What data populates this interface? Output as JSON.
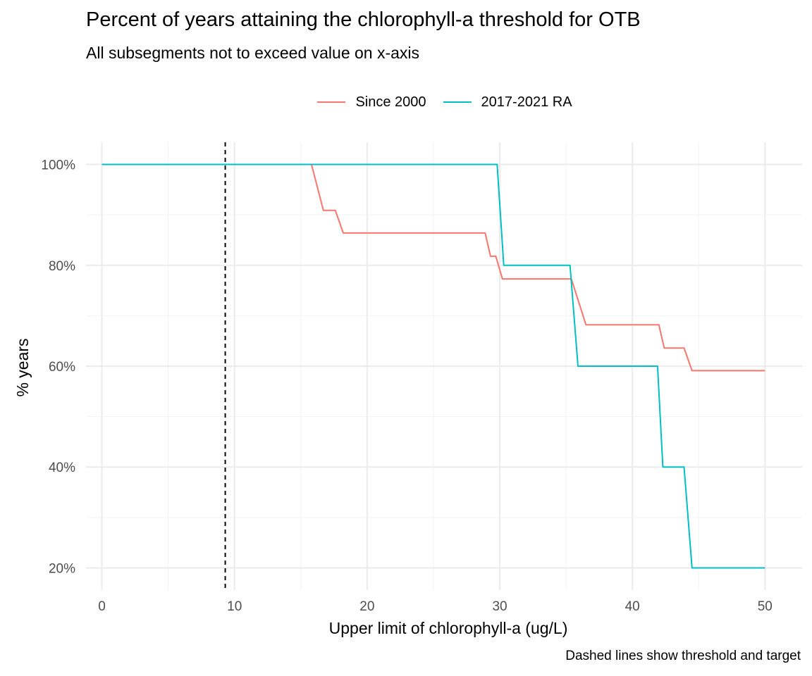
{
  "chart_data": {
    "type": "line",
    "title": "Percent of years attaining the chlorophyll-a threshold for OTB",
    "subtitle": "All subsegments not to exceed value on x-axis",
    "caption": "Dashed lines show threshold and target",
    "xlabel": "Upper limit of chlorophyll-a (ug/L)",
    "ylabel": "% years",
    "xlim": [
      -1.2,
      52.8
    ],
    "ylim": [
      15.6,
      104.4
    ],
    "xticks": [
      0,
      10,
      20,
      30,
      40,
      50
    ],
    "xtick_labels": [
      "0",
      "10",
      "20",
      "30",
      "40",
      "50"
    ],
    "yticks": [
      20,
      40,
      60,
      80,
      100
    ],
    "ytick_labels": [
      "20%",
      "40%",
      "60%",
      "80%",
      "100%"
    ],
    "grid": true,
    "legend_position": "top",
    "reference_lines": [
      {
        "axis": "x",
        "value": 9.3,
        "style": "dashed",
        "color": "#000000"
      }
    ],
    "series": [
      {
        "name": "Since 2000",
        "color": "#F8766D",
        "x": [
          0,
          15.8,
          16.7,
          17.6,
          18.2,
          28.9,
          29.3,
          29.7,
          30.2,
          35.4,
          36.5,
          42.0,
          42.4,
          43.9,
          44.5,
          50
        ],
        "y": [
          100,
          100,
          90.9,
          90.9,
          86.4,
          86.4,
          81.8,
          81.8,
          77.3,
          77.3,
          68.2,
          68.2,
          63.6,
          63.6,
          59.1,
          59.1
        ]
      },
      {
        "name": "2017-2021 RA",
        "color": "#00BFC4",
        "x": [
          0,
          29.8,
          30.3,
          35.3,
          35.9,
          41.9,
          42.3,
          43.9,
          44.5,
          50
        ],
        "y": [
          100,
          100,
          80,
          80,
          60,
          60,
          40,
          40,
          20,
          20
        ]
      }
    ]
  }
}
